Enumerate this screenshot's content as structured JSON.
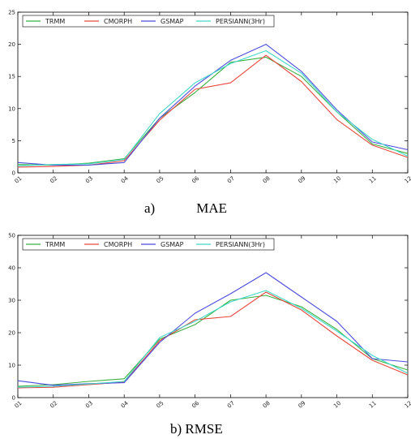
{
  "colors": {
    "TRMM": "#3cb043",
    "CMORPH": "#e8473f",
    "GSMAP": "#4b4bdc",
    "PERSIANN(3Hr)": "#40d8c8"
  },
  "chart_data": [
    {
      "type": "line",
      "caption": "a)            MAE",
      "x": [
        "01",
        "02",
        "03",
        "04",
        "05",
        "06",
        "07",
        "08",
        "09",
        "10",
        "11",
        "12"
      ],
      "ylim": [
        0,
        25
      ],
      "yticks": [
        0,
        5,
        10,
        15,
        20,
        25
      ],
      "grid": false,
      "legend": "top",
      "series": [
        {
          "name": "TRMM",
          "values": [
            1.3,
            1.2,
            1.5,
            2.2,
            8.5,
            12.5,
            17.2,
            18.0,
            15.0,
            9.5,
            4.5,
            3.0
          ]
        },
        {
          "name": "CMORPH",
          "values": [
            0.9,
            1.0,
            1.2,
            1.9,
            8.2,
            13.0,
            14.0,
            18.3,
            14.2,
            8.3,
            4.3,
            2.4
          ]
        },
        {
          "name": "GSMAP",
          "values": [
            1.6,
            1.2,
            1.2,
            1.6,
            8.5,
            13.5,
            17.5,
            20.0,
            15.8,
            9.8,
            4.8,
            3.6
          ]
        },
        {
          "name": "PERSIANN(3Hr)",
          "values": [
            1.1,
            1.3,
            1.4,
            2.1,
            9.2,
            14.0,
            17.0,
            19.0,
            15.5,
            9.5,
            5.2,
            2.6
          ]
        }
      ]
    },
    {
      "type": "line",
      "caption": "b) RMSE",
      "x": [
        "01",
        "02",
        "03",
        "04",
        "05",
        "06",
        "07",
        "08",
        "09",
        "10",
        "11",
        "12"
      ],
      "ylim": [
        0,
        50
      ],
      "yticks": [
        0,
        10,
        20,
        30,
        40,
        50
      ],
      "grid": false,
      "legend": "top",
      "series": [
        {
          "name": "TRMM",
          "values": [
            3.5,
            4.0,
            5.0,
            5.8,
            18.0,
            22.5,
            30.0,
            31.5,
            28.0,
            21.0,
            12.0,
            8.5
          ]
        },
        {
          "name": "CMORPH",
          "values": [
            3.0,
            3.2,
            4.0,
            4.8,
            17.5,
            24.0,
            25.0,
            32.5,
            27.0,
            19.0,
            11.5,
            7.0
          ]
        },
        {
          "name": "GSMAP",
          "values": [
            5.2,
            3.8,
            4.3,
            4.6,
            17.0,
            26.0,
            32.0,
            38.5,
            31.0,
            23.5,
            12.0,
            11.0
          ]
        },
        {
          "name": "PERSIANN(3Hr)",
          "values": [
            3.2,
            3.5,
            4.2,
            5.0,
            18.5,
            23.5,
            29.5,
            33.0,
            27.5,
            20.5,
            13.0,
            7.5
          ]
        }
      ]
    }
  ]
}
